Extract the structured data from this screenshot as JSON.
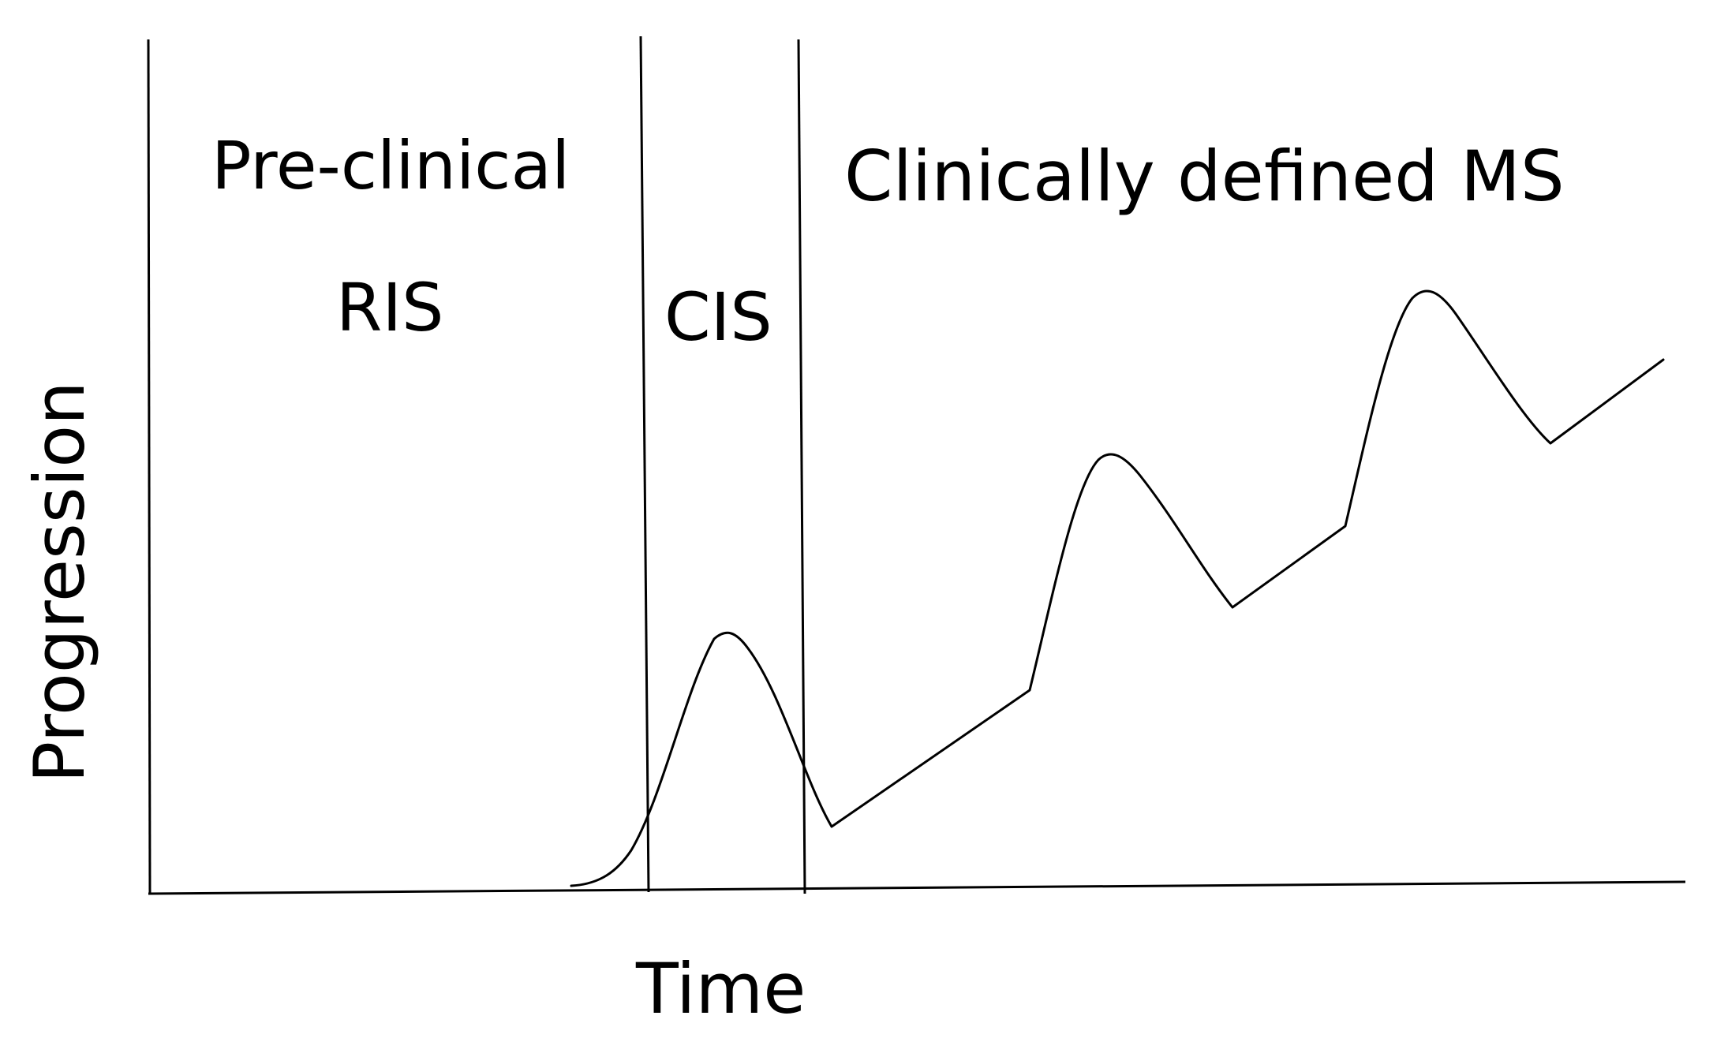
{
  "diagram": {
    "phases": {
      "preclinical": "Pre-clinical",
      "ris": "RIS",
      "cis": "CIS",
      "clinical": "Clinically defined MS"
    },
    "axes": {
      "x_label": "Time",
      "y_label": "Progression"
    },
    "colors": {
      "line": "#000000",
      "background": "#ffffff"
    }
  }
}
